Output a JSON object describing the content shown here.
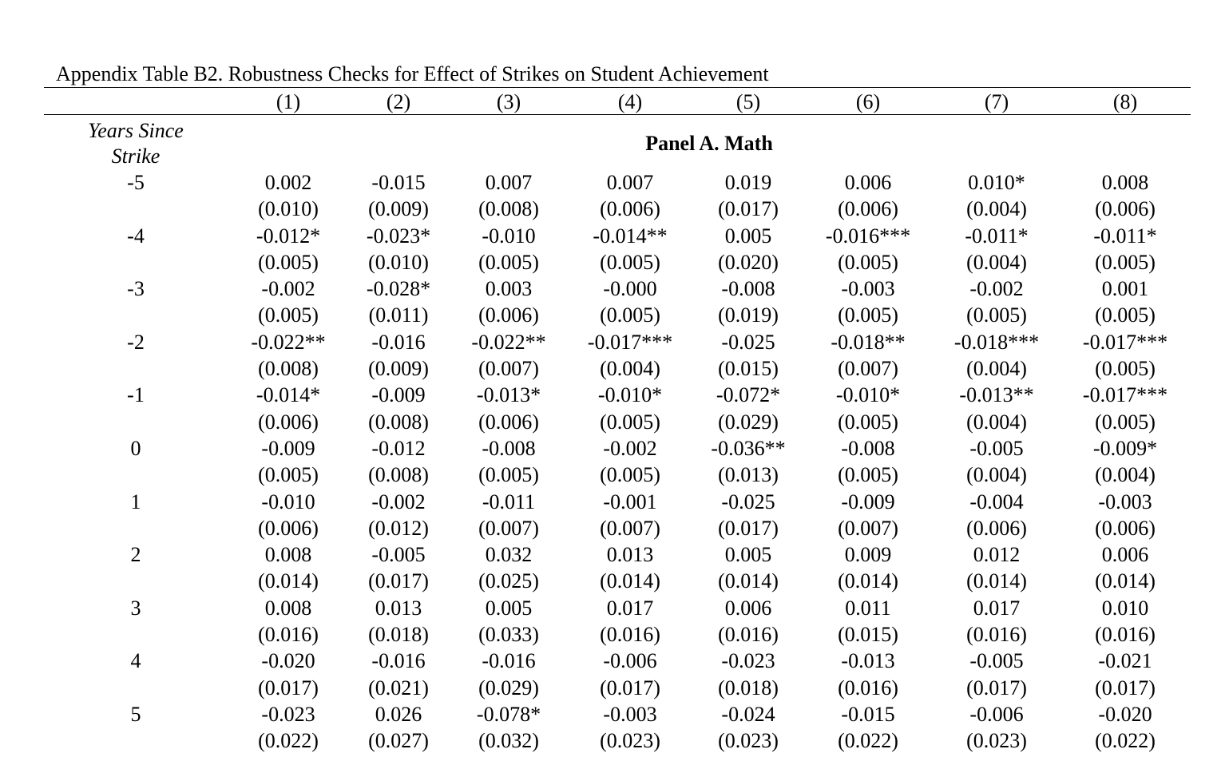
{
  "caption": "Appendix Table B2. Robustness Checks for Effect of Strikes on Student Achievement",
  "columns": [
    "(1)",
    "(2)",
    "(3)",
    "(4)",
    "(5)",
    "(6)",
    "(7)",
    "(8)"
  ],
  "stub_header": [
    "Years Since",
    "Strike"
  ],
  "panel_title": "Panel A. Math",
  "rows": [
    {
      "label": "-5",
      "coef": [
        "0.002",
        "-0.015",
        "0.007",
        "0.007",
        "0.019",
        "0.006",
        "0.010*",
        "0.008"
      ],
      "se": [
        "(0.010)",
        "(0.009)",
        "(0.008)",
        "(0.006)",
        "(0.017)",
        "(0.006)",
        "(0.004)",
        "(0.006)"
      ]
    },
    {
      "label": "-4",
      "coef": [
        "-0.012*",
        "-0.023*",
        "-0.010",
        "-0.014**",
        "0.005",
        "-0.016***",
        "-0.011*",
        "-0.011*"
      ],
      "se": [
        "(0.005)",
        "(0.010)",
        "(0.005)",
        "(0.005)",
        "(0.020)",
        "(0.005)",
        "(0.004)",
        "(0.005)"
      ]
    },
    {
      "label": "-3",
      "coef": [
        "-0.002",
        "-0.028*",
        "0.003",
        "-0.000",
        "-0.008",
        "-0.003",
        "-0.002",
        "0.001"
      ],
      "se": [
        "(0.005)",
        "(0.011)",
        "(0.006)",
        "(0.005)",
        "(0.019)",
        "(0.005)",
        "(0.005)",
        "(0.005)"
      ]
    },
    {
      "label": "-2",
      "coef": [
        "-0.022**",
        "-0.016",
        "-0.022**",
        "-0.017***",
        "-0.025",
        "-0.018**",
        "-0.018***",
        "-0.017***"
      ],
      "se": [
        "(0.008)",
        "(0.009)",
        "(0.007)",
        "(0.004)",
        "(0.015)",
        "(0.007)",
        "(0.004)",
        "(0.005)"
      ]
    },
    {
      "label": "-1",
      "coef": [
        "-0.014*",
        "-0.009",
        "-0.013*",
        "-0.010*",
        "-0.072*",
        "-0.010*",
        "-0.013**",
        "-0.017***"
      ],
      "se": [
        "(0.006)",
        "(0.008)",
        "(0.006)",
        "(0.005)",
        "(0.029)",
        "(0.005)",
        "(0.004)",
        "(0.005)"
      ]
    },
    {
      "label": "0",
      "coef": [
        "-0.009",
        "-0.012",
        "-0.008",
        "-0.002",
        "-0.036**",
        "-0.008",
        "-0.005",
        "-0.009*"
      ],
      "se": [
        "(0.005)",
        "(0.008)",
        "(0.005)",
        "(0.005)",
        "(0.013)",
        "(0.005)",
        "(0.004)",
        "(0.004)"
      ]
    },
    {
      "label": "1",
      "coef": [
        "-0.010",
        "-0.002",
        "-0.011",
        "-0.001",
        "-0.025",
        "-0.009",
        "-0.004",
        "-0.003"
      ],
      "se": [
        "(0.006)",
        "(0.012)",
        "(0.007)",
        "(0.007)",
        "(0.017)",
        "(0.007)",
        "(0.006)",
        "(0.006)"
      ]
    },
    {
      "label": "2",
      "coef": [
        "0.008",
        "-0.005",
        "0.032",
        "0.013",
        "0.005",
        "0.009",
        "0.012",
        "0.006"
      ],
      "se": [
        "(0.014)",
        "(0.017)",
        "(0.025)",
        "(0.014)",
        "(0.014)",
        "(0.014)",
        "(0.014)",
        "(0.014)"
      ]
    },
    {
      "label": "3",
      "coef": [
        "0.008",
        "0.013",
        "0.005",
        "0.017",
        "0.006",
        "0.011",
        "0.017",
        "0.010"
      ],
      "se": [
        "(0.016)",
        "(0.018)",
        "(0.033)",
        "(0.016)",
        "(0.016)",
        "(0.015)",
        "(0.016)",
        "(0.016)"
      ]
    },
    {
      "label": "4",
      "coef": [
        "-0.020",
        "-0.016",
        "-0.016",
        "-0.006",
        "-0.023",
        "-0.013",
        "-0.005",
        "-0.021"
      ],
      "se": [
        "(0.017)",
        "(0.021)",
        "(0.029)",
        "(0.017)",
        "(0.018)",
        "(0.016)",
        "(0.017)",
        "(0.017)"
      ]
    },
    {
      "label": "5",
      "coef": [
        "-0.023",
        "0.026",
        "-0.078*",
        "-0.003",
        "-0.024",
        "-0.015",
        "-0.006",
        "-0.020"
      ],
      "se": [
        "(0.022)",
        "(0.027)",
        "(0.032)",
        "(0.023)",
        "(0.023)",
        "(0.022)",
        "(0.023)",
        "(0.022)"
      ]
    }
  ]
}
